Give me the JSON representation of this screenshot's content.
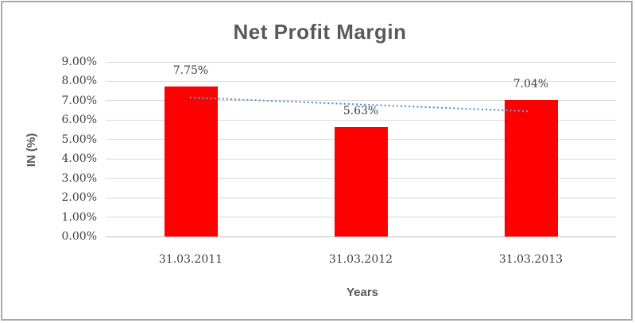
{
  "chart_data": {
    "type": "bar",
    "title": "Net Profit Margin",
    "xlabel": "Years",
    "ylabel": "IN (%)",
    "categories": [
      "31.03.2011",
      "31.03.2012",
      "31.03.2013"
    ],
    "values": [
      7.75,
      5.63,
      7.04
    ],
    "data_labels": [
      "7.75%",
      "5.63%",
      "7.04%"
    ],
    "y_ticks": [
      "0.00%",
      "1.00%",
      "2.00%",
      "3.00%",
      "4.00%",
      "5.00%",
      "6.00%",
      "7.00%",
      "8.00%",
      "9.00%"
    ],
    "ylim": [
      0,
      9
    ],
    "grid": true,
    "legend": "none",
    "colors": {
      "bar": "#ff0000",
      "trendline": "#5b9bd5",
      "title_text": "#595959",
      "tick_text": "#404040"
    },
    "trendline": {
      "type": "linear",
      "style": "dotted",
      "start_value": 7.16,
      "end_value": 6.45
    }
  }
}
